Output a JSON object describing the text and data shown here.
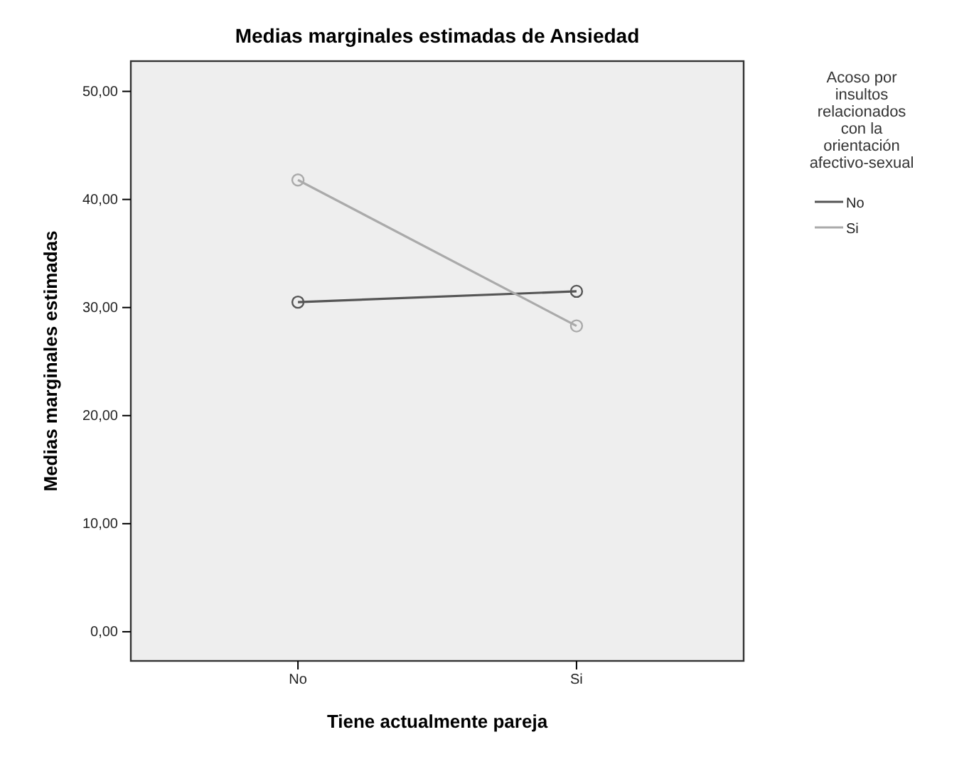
{
  "chart_data": {
    "type": "line",
    "title": "Medias marginales estimadas de Ansiedad",
    "xlabel": "Tiene actualmente pareja",
    "ylabel": "Medias marginales estimadas",
    "legend_title": "Acoso por insultos relacionados con la orientación afectivo-sexual",
    "categories": [
      "No",
      "Si"
    ],
    "series": [
      {
        "name": "No",
        "color": "#555555",
        "values": [
          30.5,
          31.5
        ]
      },
      {
        "name": "Si",
        "color": "#aaaaaa",
        "values": [
          41.8,
          28.3
        ]
      }
    ],
    "ylim": [
      -2.7,
      52.8
    ],
    "yticks": [
      {
        "value": 0,
        "label": "0,00"
      },
      {
        "value": 10,
        "label": "10,00"
      },
      {
        "value": 20,
        "label": "20,00"
      },
      {
        "value": 30,
        "label": "30,00"
      },
      {
        "value": 40,
        "label": "40,00"
      },
      {
        "value": 50,
        "label": "50,00"
      }
    ],
    "grid": false,
    "legend": "right",
    "marker": "circle",
    "line_style": "solid"
  }
}
